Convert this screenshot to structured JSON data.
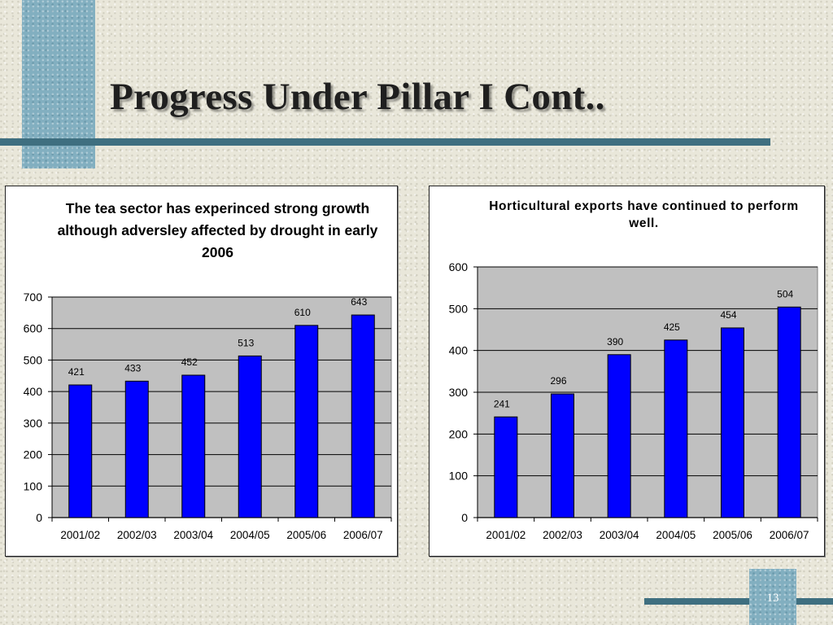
{
  "slide": {
    "title": "Progress Under Pillar I Cont..",
    "page_number": "13"
  },
  "colors": {
    "accent": "#82afc0",
    "rule": "#3f6f80",
    "bar": "#0000ff",
    "plot_bg": "#c0c0c0"
  },
  "chart_data": [
    {
      "type": "bar",
      "title": "The tea sector has experinced strong growth although adversley affected by drought in early 2006",
      "categories": [
        "2001/02",
        "2002/03",
        "2003/04",
        "2004/05",
        "2005/06",
        "2006/07"
      ],
      "values": [
        421,
        433,
        452,
        513,
        610,
        643
      ],
      "ylim": [
        0,
        700
      ],
      "yticks": [
        0,
        100,
        200,
        300,
        400,
        500,
        600,
        700
      ],
      "grid": true,
      "data_labels": true
    },
    {
      "type": "bar",
      "title": "Horticultural exports have continued to perform well.",
      "categories": [
        "2001/02",
        "2002/03",
        "2003/04",
        "2004/05",
        "2005/06",
        "2006/07"
      ],
      "values": [
        241,
        296,
        390,
        425,
        454,
        504
      ],
      "ylim": [
        0,
        600
      ],
      "yticks": [
        0,
        100,
        200,
        300,
        400,
        500,
        600
      ],
      "grid": true,
      "data_labels": true
    }
  ]
}
